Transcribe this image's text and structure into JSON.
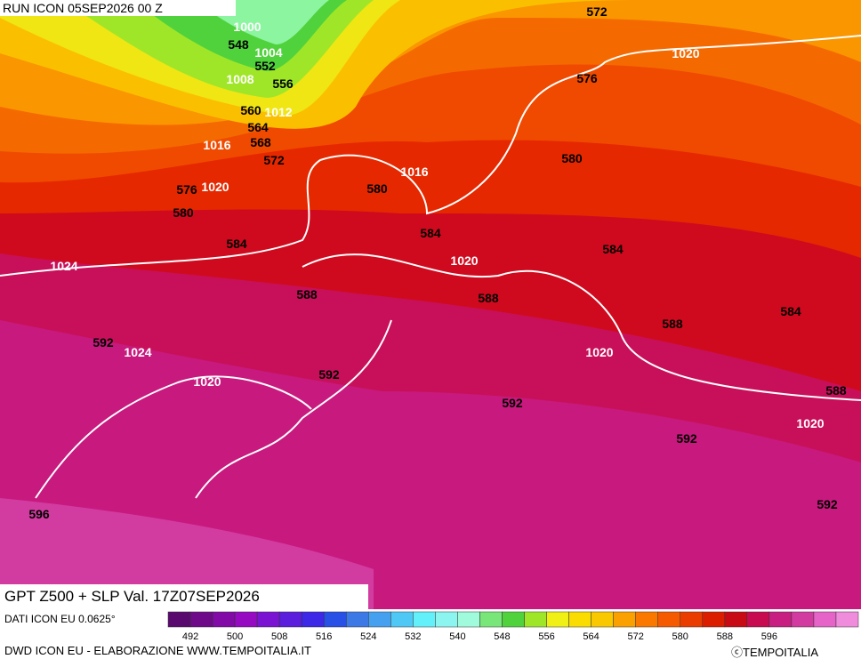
{
  "header": {
    "run": "RUN ICON 05SEP2026 00 Z"
  },
  "map": {
    "contour_labels": [
      "548",
      "552",
      "556",
      "560",
      "564",
      "568",
      "572",
      "576",
      "580",
      "584",
      "588",
      "592",
      "592",
      "592",
      "592",
      "592",
      "596",
      "572",
      "576",
      "580",
      "580",
      "584",
      "584",
      "588",
      "588",
      "584",
      "588"
    ],
    "pressure_labels": [
      "1000",
      "1004",
      "1008",
      "1012",
      "1016",
      "1020",
      "1016",
      "1024",
      "1020",
      "1020",
      "1020",
      "1024",
      "1020",
      "1020"
    ]
  },
  "footer": {
    "title": "GPT Z500 + SLP Val. 17Z07SEP2026",
    "data_source": "DATI ICON EU 0.0625°",
    "credit": "DWD ICON EU - ELABORAZIONE WWW.TEMPOITALIA.IT",
    "copyright": "ⓒTEMPOITALIA"
  },
  "colorbar": {
    "labels": [
      492,
      500,
      508,
      516,
      524,
      532,
      540,
      548,
      556,
      564,
      572,
      580,
      588,
      596
    ],
    "colors": [
      "#5a0a6e",
      "#6e0a8a",
      "#820aa6",
      "#960ac2",
      "#7a14d2",
      "#5a1edc",
      "#3c28e6",
      "#2850e6",
      "#3c78e6",
      "#46a0f0",
      "#50c8f5",
      "#64f0fa",
      "#8cf5f0",
      "#a0fadc",
      "#78e678",
      "#50d23c",
      "#a0e628",
      "#f0f014",
      "#fadc00",
      "#fac800",
      "#faa000",
      "#fa7800",
      "#f55a00",
      "#eb3c00",
      "#dc1e00",
      "#c80a14",
      "#c80a50",
      "#c81e82",
      "#d23ca0",
      "#e664c8",
      "#f08cdc"
    ]
  }
}
